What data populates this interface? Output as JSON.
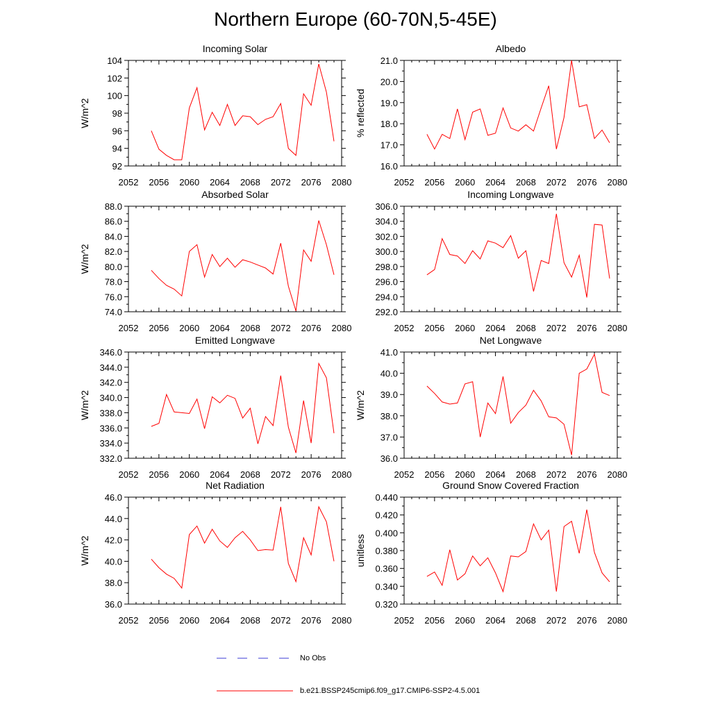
{
  "title": "Northern Europe (60-70N,5-45E)",
  "legend": {
    "obs_label": "No Obs",
    "model_label": "b.e21.BSSP245cmip6.f09_g17.CMIP6-SSP2-4.5.001",
    "obs_color": "#3b3bd6",
    "model_color": "#ff0000"
  },
  "chart_data": [
    {
      "type": "line",
      "title": "Incoming Solar",
      "ylabel": "W/m^2",
      "xlim": [
        2052,
        2080
      ],
      "ylim": [
        92,
        104
      ],
      "xticks": [
        2052,
        2056,
        2060,
        2064,
        2068,
        2072,
        2076,
        2080
      ],
      "yticks": [
        "92",
        "94",
        "96",
        "98",
        "100",
        "102",
        "104"
      ],
      "x": [
        2055,
        2056,
        2057,
        2058,
        2059,
        2060,
        2061,
        2062,
        2063,
        2064,
        2065,
        2066,
        2067,
        2068,
        2069,
        2070,
        2071,
        2072,
        2073,
        2074,
        2075,
        2076,
        2077,
        2078,
        2079
      ],
      "series": [
        {
          "values": [
            96.0,
            93.9,
            93.2,
            92.7,
            92.7,
            98.6,
            100.9,
            96.1,
            98.1,
            96.6,
            99.0,
            96.6,
            97.7,
            97.6,
            96.7,
            97.3,
            97.6,
            99.1,
            94.0,
            93.2,
            100.2,
            98.9,
            103.6,
            100.4,
            94.8
          ]
        }
      ]
    },
    {
      "type": "line",
      "title": "Albedo",
      "ylabel": "% reflected",
      "xlim": [
        2052,
        2080
      ],
      "ylim": [
        16.0,
        21.0
      ],
      "xticks": [
        2052,
        2056,
        2060,
        2064,
        2068,
        2072,
        2076,
        2080
      ],
      "yticks": [
        "16.0",
        "17.0",
        "18.0",
        "19.0",
        "20.0",
        "21.0"
      ],
      "x": [
        2055,
        2056,
        2057,
        2058,
        2059,
        2060,
        2061,
        2062,
        2063,
        2064,
        2065,
        2066,
        2067,
        2068,
        2069,
        2070,
        2071,
        2072,
        2073,
        2074,
        2075,
        2076,
        2077,
        2078,
        2079
      ],
      "series": [
        {
          "values": [
            17.5,
            16.8,
            17.5,
            17.3,
            18.7,
            17.25,
            18.55,
            18.7,
            17.45,
            17.55,
            18.75,
            17.8,
            17.65,
            17.95,
            17.65,
            18.75,
            19.8,
            16.8,
            18.3,
            21.0,
            18.8,
            18.9,
            17.3,
            17.7,
            17.1
          ]
        }
      ]
    },
    {
      "type": "line",
      "title": "Absorbed Solar",
      "ylabel": "W/m^2",
      "xlim": [
        2052,
        2080
      ],
      "ylim": [
        74.0,
        88.0
      ],
      "xticks": [
        2052,
        2056,
        2060,
        2064,
        2068,
        2072,
        2076,
        2080
      ],
      "yticks": [
        "74.0",
        "76.0",
        "78.0",
        "80.0",
        "82.0",
        "84.0",
        "86.0",
        "88.0"
      ],
      "x": [
        2055,
        2056,
        2057,
        2058,
        2059,
        2060,
        2061,
        2062,
        2063,
        2064,
        2065,
        2066,
        2067,
        2068,
        2069,
        2070,
        2071,
        2072,
        2073,
        2074,
        2075,
        2076,
        2077,
        2078,
        2079
      ],
      "series": [
        {
          "values": [
            79.5,
            78.4,
            77.5,
            77.0,
            76.1,
            82.0,
            82.9,
            78.6,
            81.6,
            80.0,
            81.1,
            79.9,
            80.9,
            80.6,
            80.2,
            79.8,
            79.0,
            83.1,
            77.4,
            74.1,
            82.2,
            80.7,
            86.1,
            82.9,
            78.9
          ]
        }
      ]
    },
    {
      "type": "line",
      "title": "Incoming Longwave",
      "ylabel": "",
      "xlim": [
        2052,
        2080
      ],
      "ylim": [
        292.0,
        306.0
      ],
      "xticks": [
        2052,
        2056,
        2060,
        2064,
        2068,
        2072,
        2076,
        2080
      ],
      "yticks": [
        "292.0",
        "294.0",
        "296.0",
        "298.0",
        "300.0",
        "302.0",
        "304.0",
        "306.0"
      ],
      "x": [
        2055,
        2056,
        2057,
        2058,
        2059,
        2060,
        2061,
        2062,
        2063,
        2064,
        2065,
        2066,
        2067,
        2068,
        2069,
        2070,
        2071,
        2072,
        2073,
        2074,
        2075,
        2076,
        2077,
        2078,
        2079
      ],
      "series": [
        {
          "values": [
            296.9,
            297.6,
            301.7,
            299.6,
            299.4,
            298.4,
            300.1,
            299.0,
            301.4,
            301.1,
            300.5,
            302.1,
            299.1,
            300.1,
            294.7,
            298.8,
            298.4,
            305.0,
            298.5,
            296.6,
            299.5,
            293.9,
            303.6,
            303.5,
            296.4
          ]
        }
      ]
    },
    {
      "type": "line",
      "title": "Emitted Longwave",
      "ylabel": "W/m^2",
      "xlim": [
        2052,
        2080
      ],
      "ylim": [
        332.0,
        346.0
      ],
      "xticks": [
        2052,
        2056,
        2060,
        2064,
        2068,
        2072,
        2076,
        2080
      ],
      "yticks": [
        "332.0",
        "334.0",
        "336.0",
        "338.0",
        "340.0",
        "342.0",
        "344.0",
        "346.0"
      ],
      "x": [
        2055,
        2056,
        2057,
        2058,
        2059,
        2060,
        2061,
        2062,
        2063,
        2064,
        2065,
        2066,
        2067,
        2068,
        2069,
        2070,
        2071,
        2072,
        2073,
        2074,
        2075,
        2076,
        2077,
        2078,
        2079
      ],
      "series": [
        {
          "values": [
            336.2,
            336.6,
            340.4,
            338.1,
            338.0,
            337.9,
            339.8,
            335.9,
            340.1,
            339.3,
            340.3,
            339.9,
            337.3,
            338.6,
            333.9,
            337.5,
            336.3,
            342.9,
            336.1,
            332.7,
            339.6,
            334.0,
            344.5,
            342.6,
            335.3
          ]
        }
      ]
    },
    {
      "type": "line",
      "title": "Net Longwave",
      "ylabel": "W/m^2",
      "xlim": [
        2052,
        2080
      ],
      "ylim": [
        36.0,
        41.0
      ],
      "xticks": [
        2052,
        2056,
        2060,
        2064,
        2068,
        2072,
        2076,
        2080
      ],
      "yticks": [
        "36.0",
        "37.0",
        "38.0",
        "39.0",
        "40.0",
        "41.0"
      ],
      "x": [
        2055,
        2056,
        2057,
        2058,
        2059,
        2060,
        2061,
        2062,
        2063,
        2064,
        2065,
        2066,
        2067,
        2068,
        2069,
        2070,
        2071,
        2072,
        2073,
        2074,
        2075,
        2076,
        2077,
        2078,
        2079
      ],
      "series": [
        {
          "values": [
            39.4,
            39.05,
            38.65,
            38.55,
            38.6,
            39.5,
            39.6,
            37.0,
            38.6,
            38.1,
            39.85,
            37.65,
            38.15,
            38.5,
            39.2,
            38.7,
            37.95,
            37.9,
            37.6,
            36.15,
            40.0,
            40.2,
            40.9,
            39.1,
            38.95
          ]
        }
      ]
    },
    {
      "type": "line",
      "title": "Net Radiation",
      "ylabel": "W/m^2",
      "xlim": [
        2052,
        2080
      ],
      "ylim": [
        36.0,
        46.0
      ],
      "xticks": [
        2052,
        2056,
        2060,
        2064,
        2068,
        2072,
        2076,
        2080
      ],
      "yticks": [
        "36.0",
        "38.0",
        "40.0",
        "42.0",
        "44.0",
        "46.0"
      ],
      "x": [
        2055,
        2056,
        2057,
        2058,
        2059,
        2060,
        2061,
        2062,
        2063,
        2064,
        2065,
        2066,
        2067,
        2068,
        2069,
        2070,
        2071,
        2072,
        2073,
        2074,
        2075,
        2076,
        2077,
        2078,
        2079
      ],
      "series": [
        {
          "values": [
            40.2,
            39.4,
            38.8,
            38.4,
            37.5,
            42.5,
            43.3,
            41.7,
            43.0,
            41.9,
            41.3,
            42.2,
            42.8,
            42.0,
            41.0,
            41.1,
            41.05,
            45.1,
            39.8,
            38.1,
            42.2,
            40.6,
            45.1,
            43.7,
            40.0
          ]
        }
      ]
    },
    {
      "type": "line",
      "title": "Ground Snow Covered Fraction",
      "ylabel": "unitless",
      "xlim": [
        2052,
        2080
      ],
      "ylim": [
        0.32,
        0.44
      ],
      "xticks": [
        2052,
        2056,
        2060,
        2064,
        2068,
        2072,
        2076,
        2080
      ],
      "yticks": [
        "0.320",
        "0.340",
        "0.360",
        "0.380",
        "0.400",
        "0.420",
        "0.440"
      ],
      "x": [
        2055,
        2056,
        2057,
        2058,
        2059,
        2060,
        2061,
        2062,
        2063,
        2064,
        2065,
        2066,
        2067,
        2068,
        2069,
        2070,
        2071,
        2072,
        2073,
        2074,
        2075,
        2076,
        2077,
        2078,
        2079
      ],
      "series": [
        {
          "values": [
            0.351,
            0.356,
            0.341,
            0.381,
            0.347,
            0.354,
            0.374,
            0.363,
            0.372,
            0.355,
            0.334,
            0.374,
            0.373,
            0.379,
            0.41,
            0.392,
            0.403,
            0.334,
            0.407,
            0.413,
            0.377,
            0.426,
            0.378,
            0.355,
            0.345
          ]
        }
      ]
    }
  ]
}
